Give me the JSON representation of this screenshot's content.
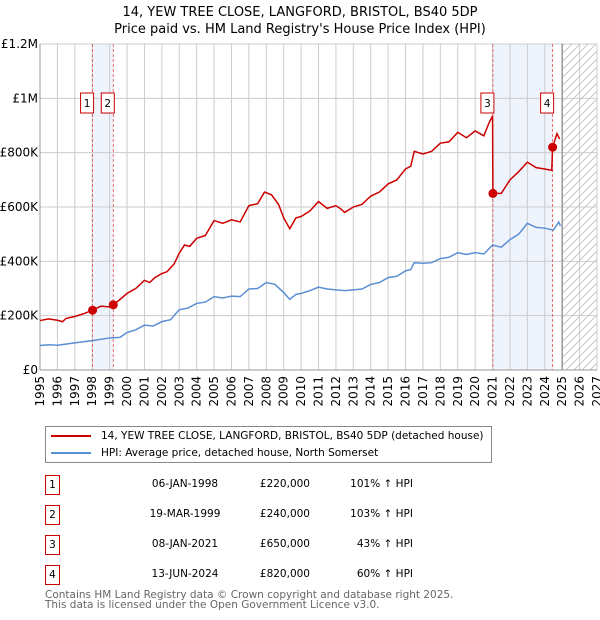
{
  "chart_data": {
    "type": "line",
    "title": "14, YEW TREE CLOSE, LANGFORD, BRISTOL, BS40 5DP",
    "subtitle": "Price paid vs. HM Land Registry's House Price Index (HPI)",
    "xlim": [
      1995,
      2027
    ],
    "ylim": [
      0,
      1200000
    ],
    "y_ticks": [
      {
        "v": 0,
        "label": "£0"
      },
      {
        "v": 200000,
        "label": "£200K"
      },
      {
        "v": 400000,
        "label": "£400K"
      },
      {
        "v": 600000,
        "label": "£600K"
      },
      {
        "v": 800000,
        "label": "£800K"
      },
      {
        "v": 1000000,
        "label": "£1M"
      },
      {
        "v": 1200000,
        "label": "£1.2M"
      }
    ],
    "x_ticks": [
      "1995",
      "1996",
      "1997",
      "1998",
      "1999",
      "2000",
      "2001",
      "2002",
      "2003",
      "2004",
      "2005",
      "2006",
      "2007",
      "2008",
      "2009",
      "2010",
      "2011",
      "2012",
      "2013",
      "2014",
      "2015",
      "2016",
      "2017",
      "2018",
      "2019",
      "2020",
      "2021",
      "2022",
      "2023",
      "2024",
      "2025",
      "2026",
      "2027"
    ],
    "grid": true,
    "shaded_ranges": [
      [
        1998.02,
        1999.21
      ],
      [
        2021.02,
        2024.45
      ]
    ],
    "forecast_hatch_from": 2025.0,
    "series": [
      {
        "name": "14, YEW TREE CLOSE, LANGFORD, BRISTOL, BS40 5DP (detached house)",
        "color": "#cc0000",
        "x": [
          1995,
          1995.5,
          1996,
          1996.3,
          1996.5,
          1997,
          1997.5,
          1998.02,
          1998.5,
          1999,
          1999.21,
          1999.6,
          2000,
          2000.5,
          2001,
          2001.3,
          2001.6,
          2002,
          2002.3,
          2002.7,
          2003,
          2003.3,
          2003.6,
          2004,
          2004.5,
          2005,
          2005.5,
          2006,
          2006.5,
          2007,
          2007.5,
          2007.9,
          2008.3,
          2008.7,
          2009,
          2009.35,
          2009.7,
          2010,
          2010.5,
          2011,
          2011.5,
          2012,
          2012.3,
          2012.5,
          2013,
          2013.5,
          2014,
          2014.5,
          2015,
          2015.5,
          2016,
          2016.3,
          2016.5,
          2017,
          2017.5,
          2018,
          2018.5,
          2019,
          2019.5,
          2020,
          2020.5,
          2020.8,
          2021.0,
          2021.02,
          2021.5,
          2022,
          2022.5,
          2023,
          2023.5,
          2024,
          2024.4,
          2024.45,
          2024.7,
          2024.85
        ],
        "values": [
          182000,
          188000,
          183000,
          178000,
          190000,
          197000,
          207000,
          220000,
          235000,
          232000,
          240000,
          260000,
          282000,
          300000,
          330000,
          322000,
          340000,
          355000,
          362000,
          390000,
          430000,
          460000,
          455000,
          485000,
          495000,
          550000,
          540000,
          553000,
          545000,
          605000,
          612000,
          655000,
          645000,
          610000,
          560000,
          520000,
          560000,
          565000,
          585000,
          620000,
          595000,
          605000,
          592000,
          580000,
          600000,
          610000,
          640000,
          655000,
          685000,
          700000,
          740000,
          750000,
          805000,
          795000,
          805000,
          835000,
          840000,
          875000,
          855000,
          880000,
          862000,
          910000,
          935000,
          650000,
          650000,
          700000,
          730000,
          765000,
          745000,
          740000,
          735000,
          820000,
          870000,
          850000
        ]
      },
      {
        "name": "HPI: Average price, detached house, North Somerset",
        "color": "#5b8fd4",
        "x": [
          1995,
          1995.5,
          1996,
          1997,
          1998,
          1999,
          1999.6,
          2000,
          2000.5,
          2001,
          2001.5,
          2002,
          2002.5,
          2003,
          2003.5,
          2004,
          2004.5,
          2005,
          2005.5,
          2006,
          2006.5,
          2007,
          2007.5,
          2008,
          2008.5,
          2009,
          2009.35,
          2009.7,
          2010,
          2010.5,
          2011,
          2011.5,
          2012,
          2012.5,
          2013,
          2013.5,
          2014,
          2014.5,
          2015,
          2015.5,
          2016,
          2016.3,
          2016.5,
          2017,
          2017.5,
          2018,
          2018.5,
          2019,
          2019.5,
          2020,
          2020.5,
          2021,
          2021.5,
          2022,
          2022.5,
          2023,
          2023.5,
          2024,
          2024.5,
          2024.8,
          2024.9
        ],
        "values": [
          90000,
          93000,
          91000,
          100000,
          108000,
          118000,
          120000,
          138000,
          148000,
          165000,
          162000,
          178000,
          185000,
          222000,
          228000,
          245000,
          250000,
          270000,
          265000,
          272000,
          270000,
          298000,
          300000,
          322000,
          315000,
          285000,
          260000,
          278000,
          282000,
          292000,
          305000,
          298000,
          295000,
          292000,
          295000,
          298000,
          315000,
          322000,
          340000,
          345000,
          365000,
          370000,
          395000,
          393000,
          395000,
          410000,
          415000,
          432000,
          425000,
          432000,
          427000,
          460000,
          452000,
          480000,
          500000,
          540000,
          525000,
          522000,
          515000,
          545000,
          530000
        ]
      }
    ],
    "sales": [
      {
        "n": "1",
        "x": 1998.02,
        "v": 220000
      },
      {
        "n": "2",
        "x": 1999.21,
        "v": 240000
      },
      {
        "n": "3",
        "x": 2021.02,
        "v": 650000
      },
      {
        "n": "4",
        "x": 2024.45,
        "v": 820000
      }
    ],
    "legend_position": "below"
  },
  "legend": [
    {
      "label": "14, YEW TREE CLOSE, LANGFORD, BRISTOL, BS40 5DP (detached house)",
      "color": "#cc0000"
    },
    {
      "label": "HPI: Average price, detached house, North Somerset",
      "color": "#5b8fd4"
    }
  ],
  "transactions": [
    {
      "n": "1",
      "date": "06-JAN-1998",
      "price": "£220,000",
      "hpi": "101% ↑ HPI"
    },
    {
      "n": "2",
      "date": "19-MAR-1999",
      "price": "£240,000",
      "hpi": "103% ↑ HPI"
    },
    {
      "n": "3",
      "date": "08-JAN-2021",
      "price": "£650,000",
      "hpi": "43% ↑ HPI"
    },
    {
      "n": "4",
      "date": "13-JUN-2024",
      "price": "£820,000",
      "hpi": "60% ↑ HPI"
    }
  ],
  "footer": {
    "line1": "Contains HM Land Registry data © Crown copyright and database right 2025.",
    "line2": "This data is licensed under the Open Government Licence v3.0."
  }
}
